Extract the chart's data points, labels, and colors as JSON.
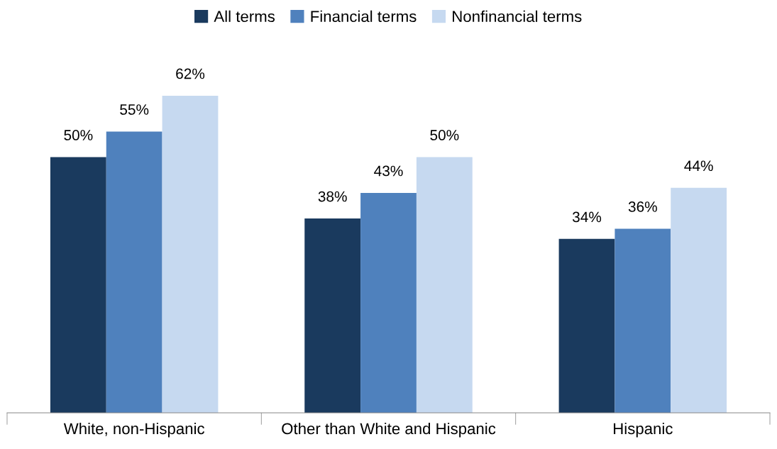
{
  "chart_data": {
    "type": "bar",
    "categories": [
      "White, non-Hispanic",
      "Other than White and Hispanic",
      "Hispanic"
    ],
    "series": [
      {
        "name": "All terms",
        "color": "#1a3a5e",
        "values": [
          50,
          38,
          34
        ],
        "value_labels": [
          "50%",
          "38%",
          "34%"
        ]
      },
      {
        "name": "Financial terms",
        "color": "#4f81bd",
        "values": [
          55,
          43,
          36
        ],
        "value_labels": [
          "55%",
          "43%",
          "36%"
        ]
      },
      {
        "name": "Nonfinancial terms",
        "color": "#c6d9f0",
        "values": [
          62,
          50,
          44
        ],
        "value_labels": [
          "62%",
          "50%",
          "44%"
        ]
      }
    ],
    "legend": "top",
    "grid": false
  }
}
